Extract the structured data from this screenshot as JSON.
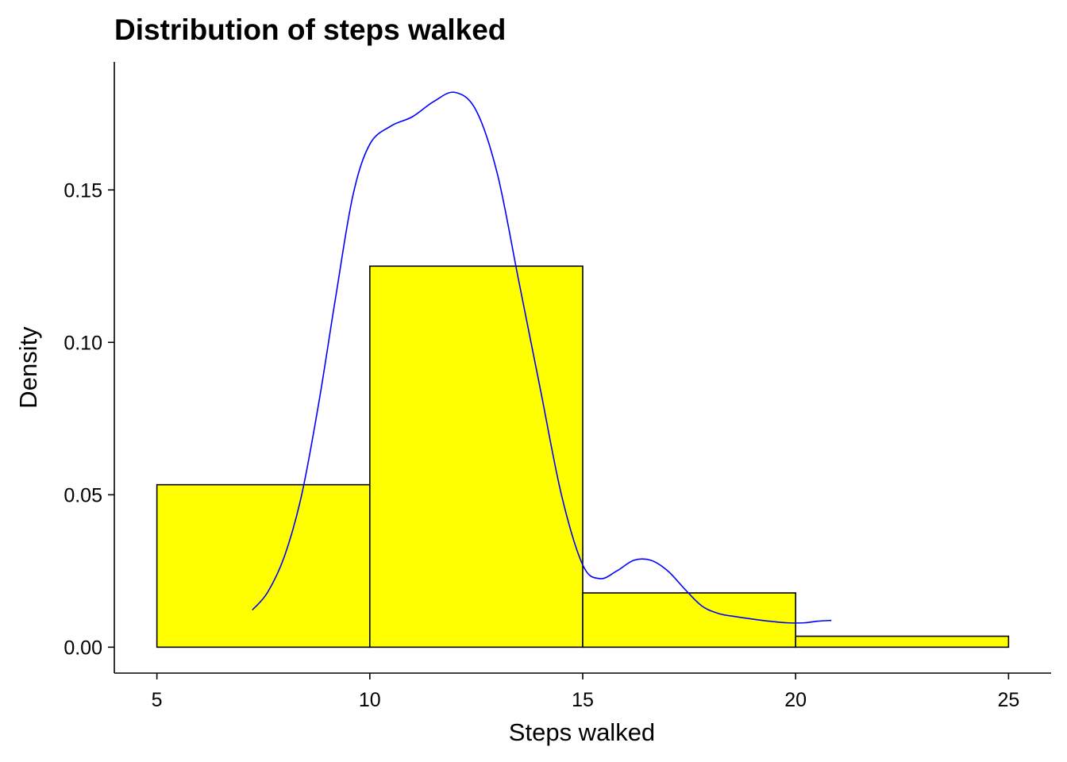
{
  "chart_data": {
    "type": "bar",
    "title": "Distribution of steps walked",
    "xlabel": "Steps walked",
    "ylabel": "Density",
    "xlim": [
      4.0,
      26.0
    ],
    "ylim": [
      -0.0085,
      0.192
    ],
    "xticks": [
      5,
      10,
      15,
      20,
      25
    ],
    "xtick_labels": [
      "5",
      "10",
      "15",
      "20",
      "25"
    ],
    "yticks": [
      0.0,
      0.05,
      0.1,
      0.15
    ],
    "ytick_labels": [
      "0.00",
      "0.05",
      "0.10",
      "0.15"
    ],
    "grid": false,
    "legend": "none",
    "histogram": {
      "bins": [
        {
          "x0": 5,
          "x1": 10,
          "density": 0.0533
        },
        {
          "x0": 10,
          "x1": 15,
          "density": 0.125
        },
        {
          "x0": 15,
          "x1": 20,
          "density": 0.0178
        },
        {
          "x0": 20,
          "x1": 25,
          "density": 0.0036
        }
      ],
      "fill": "#FFFF00",
      "stroke": "#000000"
    },
    "density_curve": {
      "color": "#0000FF",
      "points": [
        [
          7.24,
          0.0122
        ],
        [
          7.6,
          0.018
        ],
        [
          8.0,
          0.03
        ],
        [
          8.4,
          0.05
        ],
        [
          8.8,
          0.08
        ],
        [
          9.2,
          0.115
        ],
        [
          9.6,
          0.148
        ],
        [
          10.0,
          0.165
        ],
        [
          10.5,
          0.171
        ],
        [
          11.0,
          0.174
        ],
        [
          11.5,
          0.179
        ],
        [
          12.0,
          0.182
        ],
        [
          12.5,
          0.176
        ],
        [
          13.0,
          0.155
        ],
        [
          13.5,
          0.12
        ],
        [
          14.0,
          0.085
        ],
        [
          14.5,
          0.05
        ],
        [
          15.0,
          0.027
        ],
        [
          15.4,
          0.0225
        ],
        [
          15.8,
          0.025
        ],
        [
          16.2,
          0.0285
        ],
        [
          16.6,
          0.0285
        ],
        [
          17.0,
          0.025
        ],
        [
          17.4,
          0.019
        ],
        [
          17.8,
          0.0135
        ],
        [
          18.2,
          0.011
        ],
        [
          18.6,
          0.01
        ],
        [
          19.0,
          0.0092
        ],
        [
          19.4,
          0.0085
        ],
        [
          19.8,
          0.008
        ],
        [
          20.2,
          0.008
        ],
        [
          20.5,
          0.0085
        ],
        [
          20.84,
          0.0088
        ]
      ]
    }
  }
}
